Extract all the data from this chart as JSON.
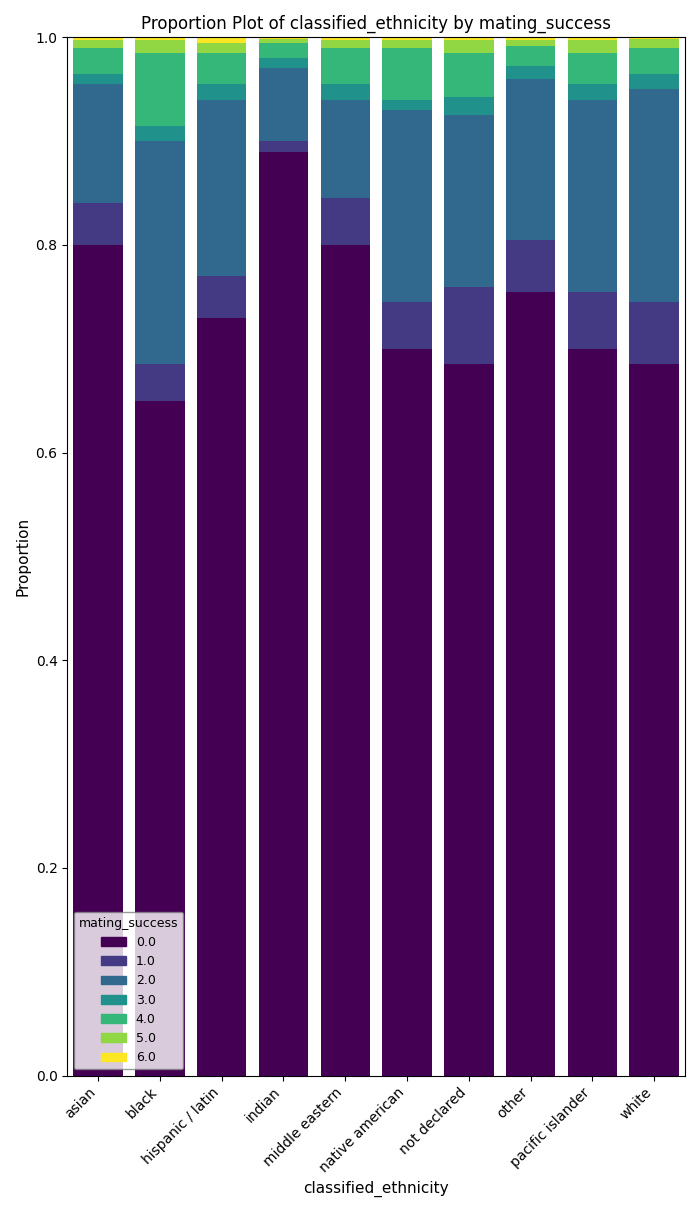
{
  "categories": [
    "asian",
    "black",
    "hispanic / latin",
    "indian",
    "middle eastern",
    "native american",
    "not declared",
    "other",
    "pacific islander",
    "white"
  ],
  "mating_success_levels": [
    "0.0",
    "1.0",
    "2.0",
    "3.0",
    "4.0",
    "5.0",
    "6.0"
  ],
  "proportions": {
    "asian": [
      0.8,
      0.04,
      0.115,
      0.01,
      0.025,
      0.007,
      0.003
    ],
    "black": [
      0.65,
      0.035,
      0.215,
      0.015,
      0.07,
      0.012,
      0.003
    ],
    "hispanic / latin": [
      0.73,
      0.04,
      0.17,
      0.015,
      0.03,
      0.01,
      0.005
    ],
    "indian": [
      0.89,
      0.01,
      0.07,
      0.01,
      0.015,
      0.003,
      0.002
    ],
    "middle eastern": [
      0.8,
      0.045,
      0.095,
      0.015,
      0.035,
      0.007,
      0.003
    ],
    "native american": [
      0.7,
      0.045,
      0.185,
      0.01,
      0.05,
      0.007,
      0.003
    ],
    "not declared": [
      0.685,
      0.075,
      0.165,
      0.018,
      0.042,
      0.012,
      0.003
    ],
    "other": [
      0.755,
      0.05,
      0.155,
      0.012,
      0.02,
      0.005,
      0.003
    ],
    "pacific islander": [
      0.7,
      0.055,
      0.185,
      0.015,
      0.03,
      0.012,
      0.003
    ],
    "white": [
      0.685,
      0.06,
      0.205,
      0.015,
      0.025,
      0.008,
      0.002
    ]
  },
  "title": "Proportion Plot of classified_ethnicity by mating_success",
  "xlabel": "classified_ethnicity",
  "ylabel": "Proportion",
  "legend_title": "mating_success",
  "figsize": [
    7.0,
    12.12
  ],
  "dpi": 100,
  "bar_width": 0.8,
  "ylim": [
    0.0,
    1.0
  ]
}
